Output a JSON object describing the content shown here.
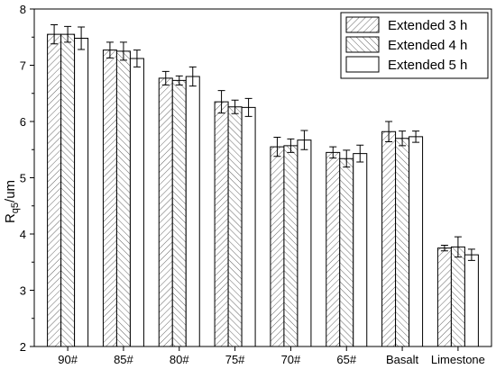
{
  "chart_data": {
    "type": "bar",
    "categories": [
      "90#",
      "85#",
      "80#",
      "75#",
      "70#",
      "65#",
      "Basalt",
      "Limestone"
    ],
    "series": [
      {
        "name": "Extended 3 h",
        "values": [
          7.55,
          7.27,
          6.77,
          6.35,
          5.55,
          5.45,
          5.82,
          3.75
        ],
        "errors": [
          0.17,
          0.14,
          0.12,
          0.2,
          0.17,
          0.1,
          0.18,
          0.05
        ]
      },
      {
        "name": "Extended 4 h",
        "values": [
          7.55,
          7.25,
          6.73,
          6.26,
          5.57,
          5.34,
          5.7,
          3.77
        ],
        "errors": [
          0.14,
          0.16,
          0.08,
          0.12,
          0.12,
          0.15,
          0.13,
          0.18
        ]
      },
      {
        "name": "Extended 5 h",
        "values": [
          7.48,
          7.12,
          6.8,
          6.25,
          5.67,
          5.43,
          5.73,
          3.63
        ],
        "errors": [
          0.2,
          0.15,
          0.17,
          0.16,
          0.17,
          0.15,
          0.1,
          0.1
        ]
      }
    ],
    "xlabel": "",
    "ylabel_main": "R",
    "ylabel_sub": "q5",
    "ylabel_rest": "/um",
    "ylim": [
      2,
      8
    ],
    "yticks": [
      2,
      3,
      4,
      5,
      6,
      7,
      8
    ],
    "legend_position": "top-right",
    "grid": false,
    "fills": [
      "hatch-down",
      "hatch-up",
      "plain"
    ]
  }
}
